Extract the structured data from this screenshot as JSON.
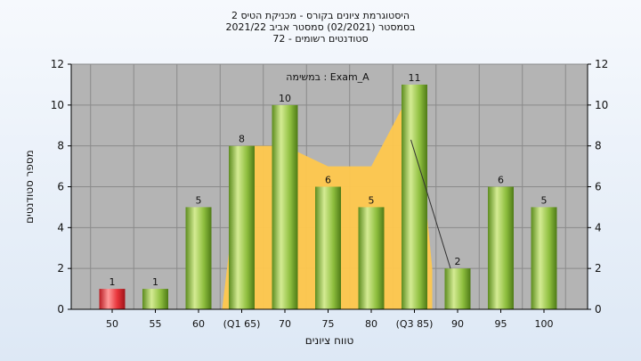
{
  "chart_data": {
    "type": "bar",
    "title_lines": [
      "היסטוגרמת ציונים בקורס - מכניקת הטיס 2",
      "בסמסטר  (02/2021)  סמסטר אביב 2021/22",
      "סטודנטים רשומים - 72"
    ],
    "xlabel": "טווח ציונים",
    "ylabel": "מספר סטודנטים",
    "annotation": "במשימה : Exam_A",
    "ylim": [
      0,
      12
    ],
    "yticks": [
      0,
      2,
      4,
      6,
      8,
      10,
      12
    ],
    "categories": [
      "50",
      "55",
      "60",
      "(Q1 65)",
      "70",
      "75",
      "80",
      "(Q3 85)",
      "90",
      "95",
      "100"
    ],
    "values": [
      1,
      1,
      5,
      8,
      10,
      6,
      5,
      11,
      2,
      6,
      5
    ],
    "value_labels": [
      "1",
      "1",
      "5",
      "8",
      "10",
      "6",
      "5",
      "11",
      "2",
      "6",
      "5"
    ],
    "highlight_index": 0,
    "iqr_band": {
      "from_index": 3,
      "to_index": 7,
      "values": [
        8,
        8,
        7,
        7,
        11
      ]
    },
    "grid": true,
    "right_axis": true,
    "colors": {
      "plot_bg": "#b4b4b4",
      "bar_green": "#8fbf3f",
      "bar_green_light": "#d4eb93",
      "bar_green_dark": "#4e7a16",
      "bar_red": "#e8343a",
      "bar_red_light": "#ff9a9a",
      "band": "#ffc84d",
      "grid": "#8a8a8a",
      "axis": "#000000"
    }
  }
}
